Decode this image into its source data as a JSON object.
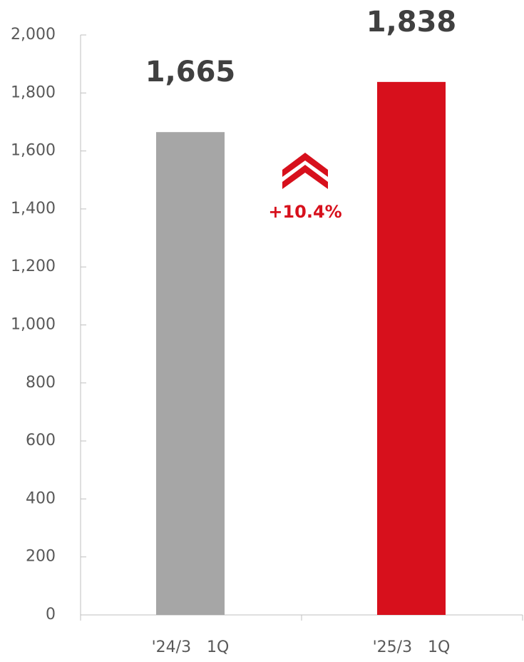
{
  "chart_data": {
    "type": "bar",
    "categories": [
      "'24/3　1Q",
      "'25/3　1Q"
    ],
    "values": [
      1665,
      1838
    ],
    "value_labels": [
      "1,665",
      "1,838"
    ],
    "colors": [
      "#a6a6a6",
      "#d7101c"
    ],
    "ylim": [
      0,
      2000
    ],
    "yticks": [
      0,
      200,
      400,
      600,
      800,
      {
        "value": 1000,
        "label": "1,000"
      },
      {
        "value": 1200,
        "label": "1,200"
      },
      {
        "value": 1400,
        "label": "1,400"
      },
      {
        "value": 1600,
        "label": "1,600"
      },
      {
        "value": 1800,
        "label": "1,800"
      },
      {
        "value": 2000,
        "label": "2,000"
      }
    ],
    "annotation": "+10.4%",
    "grid": false
  }
}
